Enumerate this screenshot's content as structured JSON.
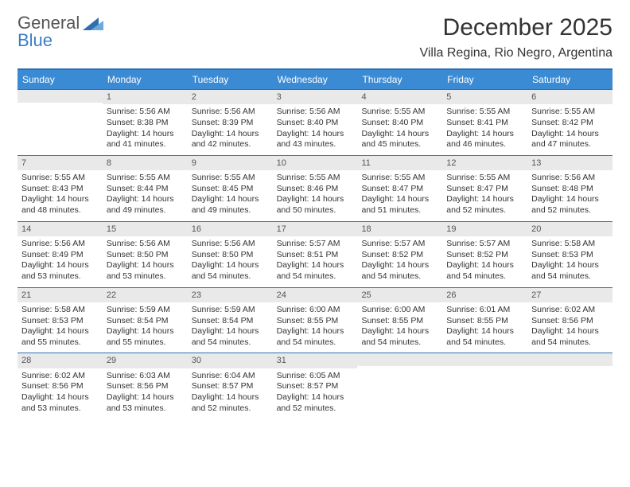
{
  "logo": {
    "line1": "General",
    "line2": "Blue"
  },
  "title": "December 2025",
  "location": "Villa Regina, Rio Negro, Argentina",
  "colors": {
    "header_bg": "#3b8bd4",
    "header_text": "#ffffff",
    "rule": "#2f6fb0",
    "daynum_bg": "#e9e9e9",
    "text": "#333333",
    "logo_gray": "#555555",
    "logo_blue": "#3b7fc4"
  },
  "dayHeaders": [
    "Sunday",
    "Monday",
    "Tuesday",
    "Wednesday",
    "Thursday",
    "Friday",
    "Saturday"
  ],
  "weeks": [
    [
      {
        "empty": true
      },
      {
        "day": "1",
        "sunrise": "Sunrise: 5:56 AM",
        "sunset": "Sunset: 8:38 PM",
        "daylight": "Daylight: 14 hours and 41 minutes."
      },
      {
        "day": "2",
        "sunrise": "Sunrise: 5:56 AM",
        "sunset": "Sunset: 8:39 PM",
        "daylight": "Daylight: 14 hours and 42 minutes."
      },
      {
        "day": "3",
        "sunrise": "Sunrise: 5:56 AM",
        "sunset": "Sunset: 8:40 PM",
        "daylight": "Daylight: 14 hours and 43 minutes."
      },
      {
        "day": "4",
        "sunrise": "Sunrise: 5:55 AM",
        "sunset": "Sunset: 8:40 PM",
        "daylight": "Daylight: 14 hours and 45 minutes."
      },
      {
        "day": "5",
        "sunrise": "Sunrise: 5:55 AM",
        "sunset": "Sunset: 8:41 PM",
        "daylight": "Daylight: 14 hours and 46 minutes."
      },
      {
        "day": "6",
        "sunrise": "Sunrise: 5:55 AM",
        "sunset": "Sunset: 8:42 PM",
        "daylight": "Daylight: 14 hours and 47 minutes."
      }
    ],
    [
      {
        "day": "7",
        "sunrise": "Sunrise: 5:55 AM",
        "sunset": "Sunset: 8:43 PM",
        "daylight": "Daylight: 14 hours and 48 minutes."
      },
      {
        "day": "8",
        "sunrise": "Sunrise: 5:55 AM",
        "sunset": "Sunset: 8:44 PM",
        "daylight": "Daylight: 14 hours and 49 minutes."
      },
      {
        "day": "9",
        "sunrise": "Sunrise: 5:55 AM",
        "sunset": "Sunset: 8:45 PM",
        "daylight": "Daylight: 14 hours and 49 minutes."
      },
      {
        "day": "10",
        "sunrise": "Sunrise: 5:55 AM",
        "sunset": "Sunset: 8:46 PM",
        "daylight": "Daylight: 14 hours and 50 minutes."
      },
      {
        "day": "11",
        "sunrise": "Sunrise: 5:55 AM",
        "sunset": "Sunset: 8:47 PM",
        "daylight": "Daylight: 14 hours and 51 minutes."
      },
      {
        "day": "12",
        "sunrise": "Sunrise: 5:55 AM",
        "sunset": "Sunset: 8:47 PM",
        "daylight": "Daylight: 14 hours and 52 minutes."
      },
      {
        "day": "13",
        "sunrise": "Sunrise: 5:56 AM",
        "sunset": "Sunset: 8:48 PM",
        "daylight": "Daylight: 14 hours and 52 minutes."
      }
    ],
    [
      {
        "day": "14",
        "sunrise": "Sunrise: 5:56 AM",
        "sunset": "Sunset: 8:49 PM",
        "daylight": "Daylight: 14 hours and 53 minutes."
      },
      {
        "day": "15",
        "sunrise": "Sunrise: 5:56 AM",
        "sunset": "Sunset: 8:50 PM",
        "daylight": "Daylight: 14 hours and 53 minutes."
      },
      {
        "day": "16",
        "sunrise": "Sunrise: 5:56 AM",
        "sunset": "Sunset: 8:50 PM",
        "daylight": "Daylight: 14 hours and 54 minutes."
      },
      {
        "day": "17",
        "sunrise": "Sunrise: 5:57 AM",
        "sunset": "Sunset: 8:51 PM",
        "daylight": "Daylight: 14 hours and 54 minutes."
      },
      {
        "day": "18",
        "sunrise": "Sunrise: 5:57 AM",
        "sunset": "Sunset: 8:52 PM",
        "daylight": "Daylight: 14 hours and 54 minutes."
      },
      {
        "day": "19",
        "sunrise": "Sunrise: 5:57 AM",
        "sunset": "Sunset: 8:52 PM",
        "daylight": "Daylight: 14 hours and 54 minutes."
      },
      {
        "day": "20",
        "sunrise": "Sunrise: 5:58 AM",
        "sunset": "Sunset: 8:53 PM",
        "daylight": "Daylight: 14 hours and 54 minutes."
      }
    ],
    [
      {
        "day": "21",
        "sunrise": "Sunrise: 5:58 AM",
        "sunset": "Sunset: 8:53 PM",
        "daylight": "Daylight: 14 hours and 55 minutes."
      },
      {
        "day": "22",
        "sunrise": "Sunrise: 5:59 AM",
        "sunset": "Sunset: 8:54 PM",
        "daylight": "Daylight: 14 hours and 55 minutes."
      },
      {
        "day": "23",
        "sunrise": "Sunrise: 5:59 AM",
        "sunset": "Sunset: 8:54 PM",
        "daylight": "Daylight: 14 hours and 54 minutes."
      },
      {
        "day": "24",
        "sunrise": "Sunrise: 6:00 AM",
        "sunset": "Sunset: 8:55 PM",
        "daylight": "Daylight: 14 hours and 54 minutes."
      },
      {
        "day": "25",
        "sunrise": "Sunrise: 6:00 AM",
        "sunset": "Sunset: 8:55 PM",
        "daylight": "Daylight: 14 hours and 54 minutes."
      },
      {
        "day": "26",
        "sunrise": "Sunrise: 6:01 AM",
        "sunset": "Sunset: 8:55 PM",
        "daylight": "Daylight: 14 hours and 54 minutes."
      },
      {
        "day": "27",
        "sunrise": "Sunrise: 6:02 AM",
        "sunset": "Sunset: 8:56 PM",
        "daylight": "Daylight: 14 hours and 54 minutes."
      }
    ],
    [
      {
        "day": "28",
        "sunrise": "Sunrise: 6:02 AM",
        "sunset": "Sunset: 8:56 PM",
        "daylight": "Daylight: 14 hours and 53 minutes."
      },
      {
        "day": "29",
        "sunrise": "Sunrise: 6:03 AM",
        "sunset": "Sunset: 8:56 PM",
        "daylight": "Daylight: 14 hours and 53 minutes."
      },
      {
        "day": "30",
        "sunrise": "Sunrise: 6:04 AM",
        "sunset": "Sunset: 8:57 PM",
        "daylight": "Daylight: 14 hours and 52 minutes."
      },
      {
        "day": "31",
        "sunrise": "Sunrise: 6:05 AM",
        "sunset": "Sunset: 8:57 PM",
        "daylight": "Daylight: 14 hours and 52 minutes."
      },
      {
        "empty": true
      },
      {
        "empty": true
      },
      {
        "empty": true
      }
    ]
  ]
}
